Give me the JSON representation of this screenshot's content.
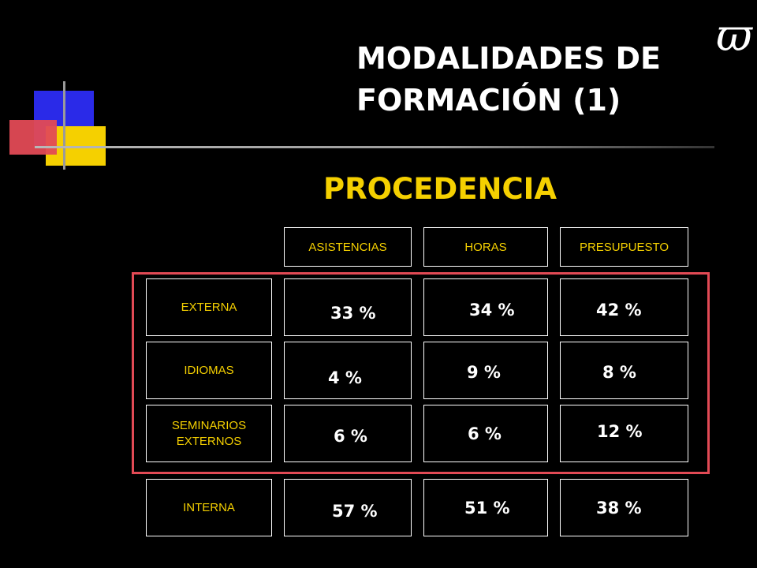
{
  "slide": {
    "title_line1": "MODALIDADES DE",
    "title_line2": "FORMACIÓN (1)",
    "subtitle": "PROCEDENCIA",
    "logo_glyph": "ϖ"
  },
  "table": {
    "headers": [
      "ASISTENCIAS",
      "HORAS",
      "PRESUPUESTO"
    ],
    "rows": [
      {
        "label": "EXTERNA",
        "values": [
          "33 %",
          "34 %",
          "42 %"
        ]
      },
      {
        "label": "IDIOMAS",
        "values": [
          "4 %",
          "9 %",
          "8 %"
        ]
      },
      {
        "label_line1": "SEMINARIOS",
        "label_line2": "EXTERNOS",
        "values": [
          "6 %",
          "6 %",
          "12 %"
        ]
      },
      {
        "label": "INTERNA",
        "values": [
          "57 %",
          "51 %",
          "38 %"
        ]
      }
    ]
  },
  "colors": {
    "background": "#000000",
    "accent_yellow": "#f5d000",
    "frame_red": "#e24a55",
    "square_blue": "#2a2ae8"
  }
}
